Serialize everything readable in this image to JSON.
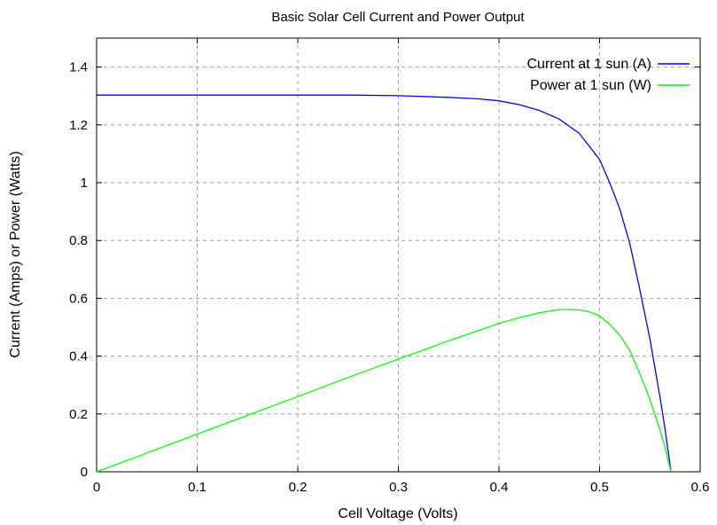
{
  "chart_data": {
    "type": "line",
    "title": "Basic Solar Cell Current and Power Output",
    "xlabel": "Cell Voltage (Volts)",
    "ylabel": "Current (Amps) or Power (Watts)",
    "xlim": [
      0,
      0.6
    ],
    "ylim": [
      0,
      1.5
    ],
    "x_ticks": [
      "0",
      "0.1",
      "0.2",
      "0.3",
      "0.4",
      "0.5",
      "0.6"
    ],
    "y_ticks": [
      "0",
      "0.2",
      "0.4",
      "0.6",
      "0.8",
      "1",
      "1.2",
      "1.4"
    ],
    "grid": true,
    "legend_position": "top-right",
    "series": [
      {
        "name": "Current at 1 sun (A)",
        "color": "#0000ff",
        "points": [
          [
            0,
            1.303
          ],
          [
            0.05,
            1.303
          ],
          [
            0.1,
            1.303
          ],
          [
            0.15,
            1.303
          ],
          [
            0.2,
            1.303
          ],
          [
            0.25,
            1.303
          ],
          [
            0.3,
            1.301
          ],
          [
            0.35,
            1.295
          ],
          [
            0.38,
            1.29
          ],
          [
            0.4,
            1.283
          ],
          [
            0.42,
            1.27
          ],
          [
            0.44,
            1.25
          ],
          [
            0.46,
            1.22
          ],
          [
            0.48,
            1.17
          ],
          [
            0.5,
            1.08
          ],
          [
            0.51,
            1.0
          ],
          [
            0.52,
            0.91
          ],
          [
            0.53,
            0.79
          ],
          [
            0.54,
            0.63
          ],
          [
            0.55,
            0.46
          ],
          [
            0.56,
            0.26
          ],
          [
            0.565,
            0.15
          ],
          [
            0.571,
            0.0
          ]
        ]
      },
      {
        "name": "Power at 1 sun (W)",
        "color": "#00ff00",
        "points": [
          [
            0,
            0
          ],
          [
            0.05,
            0.065
          ],
          [
            0.1,
            0.13
          ],
          [
            0.15,
            0.195
          ],
          [
            0.2,
            0.26
          ],
          [
            0.25,
            0.326
          ],
          [
            0.3,
            0.39
          ],
          [
            0.35,
            0.453
          ],
          [
            0.4,
            0.513
          ],
          [
            0.42,
            0.533
          ],
          [
            0.44,
            0.55
          ],
          [
            0.46,
            0.561
          ],
          [
            0.47,
            0.561
          ],
          [
            0.48,
            0.56
          ],
          [
            0.49,
            0.553
          ],
          [
            0.5,
            0.54
          ],
          [
            0.51,
            0.51
          ],
          [
            0.52,
            0.473
          ],
          [
            0.53,
            0.42
          ],
          [
            0.54,
            0.34
          ],
          [
            0.55,
            0.25
          ],
          [
            0.56,
            0.145
          ],
          [
            0.565,
            0.085
          ],
          [
            0.571,
            0.0
          ]
        ]
      }
    ]
  }
}
